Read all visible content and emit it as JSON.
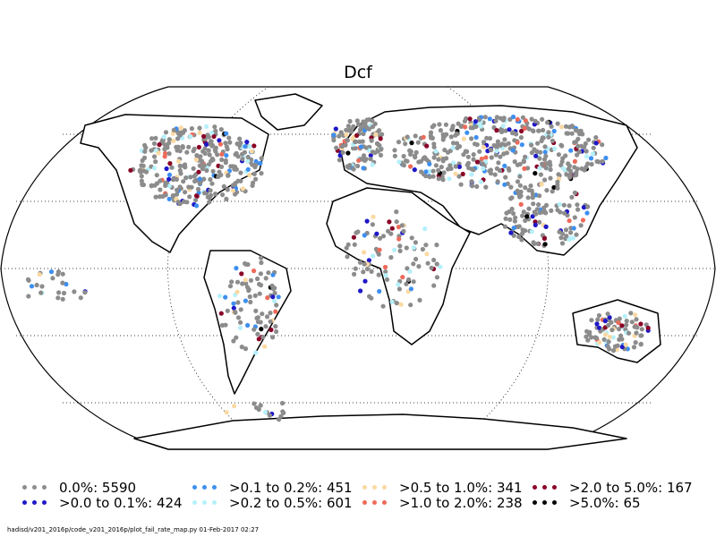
{
  "title": "Dcf",
  "legend": [
    {
      "label": "0.0%: 5590",
      "color": "#8c8c8c"
    },
    {
      "label": ">0.0 to 0.1%: 424",
      "color": "#1f18c8"
    },
    {
      "label": ">0.1 to 0.2%: 451",
      "color": "#3d8ff0"
    },
    {
      "label": ">0.2 to 0.5%: 601",
      "color": "#b5f0fb"
    },
    {
      "label": ">0.5 to 1.0%: 341",
      "color": "#fbd9a3"
    },
    {
      "label": ">1.0 to 2.0%: 238",
      "color": "#ee6a5a"
    },
    {
      "label": ">2.0 to 5.0%: 167",
      "color": "#8a0026"
    },
    {
      "label": ">5.0%: 65",
      "color": "#000000"
    }
  ],
  "footer": "hadisd/v201_2016p/code_v201_2016p/plot_fail_rate_map.py   01-Feb-2017 02:27",
  "colors": {
    "coastline": "#000000",
    "gridlines": "#000000",
    "background": "#ffffff"
  }
}
